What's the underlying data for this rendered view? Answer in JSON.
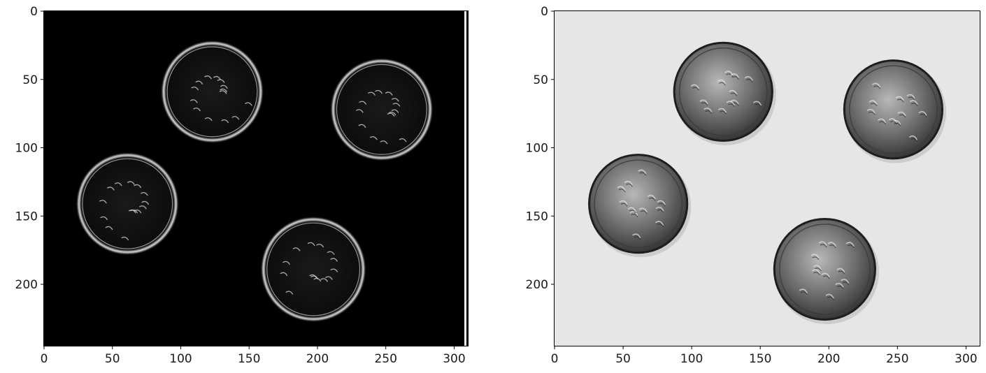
{
  "panels": [
    {
      "id": "edge-image",
      "image_width": 310,
      "image_height": 245,
      "background": "#000000",
      "ring_color": "#ffffff",
      "x_ticks": [
        0,
        50,
        100,
        150,
        200,
        250,
        300
      ],
      "y_ticks": [
        0,
        50,
        100,
        150,
        200
      ],
      "coins": [
        {
          "cx": 123,
          "cy": 59,
          "r": 36
        },
        {
          "cx": 247,
          "cy": 72,
          "r": 36
        },
        {
          "cx": 61,
          "cy": 141,
          "r": 36
        },
        {
          "cx": 197,
          "cy": 189,
          "r": 37
        }
      ]
    },
    {
      "id": "original-image",
      "image_width": 310,
      "image_height": 245,
      "background": "#e6e6e6",
      "ring_color": "#2a2a2a",
      "x_ticks": [
        0,
        50,
        100,
        150,
        200,
        250,
        300
      ],
      "y_ticks": [
        0,
        50,
        100,
        150,
        200
      ],
      "coins": [
        {
          "cx": 123,
          "cy": 59,
          "r": 36
        },
        {
          "cx": 247,
          "cy": 72,
          "r": 36
        },
        {
          "cx": 61,
          "cy": 141,
          "r": 36
        },
        {
          "cx": 197,
          "cy": 189,
          "r": 37
        }
      ]
    }
  ]
}
